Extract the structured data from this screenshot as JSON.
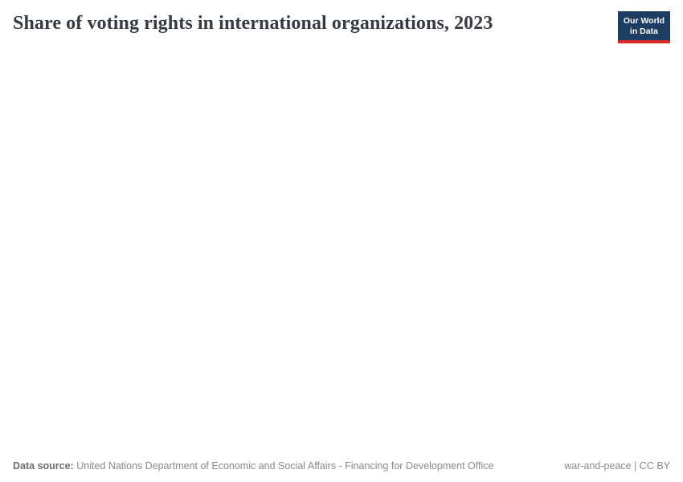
{
  "header": {
    "title": "Share of voting rights in international organizations, 2023",
    "logo": {
      "line1": "Our World",
      "line2": "in Data",
      "background_color": "#1d3d63",
      "accent_color": "#d7282a"
    }
  },
  "chart_data": {
    "type": "map",
    "title": "Share of voting rights in international organizations, 2023",
    "year": "2023",
    "series": [],
    "note_on_visibility": "plot area is blank in the screenshot; no data points, axes, legend or map shapes are rendered"
  },
  "footer": {
    "data_source_label": "Data source:",
    "data_source_text": "United Nations Department of Economic and Social Affairs - Financing for Development Office",
    "attribution": "war-and-peace | CC BY"
  },
  "colors": {
    "title_text": "#363b43",
    "footer_text": "#8a8a8a",
    "footer_label_text": "#6d6d6d",
    "background": "#ffffff"
  }
}
